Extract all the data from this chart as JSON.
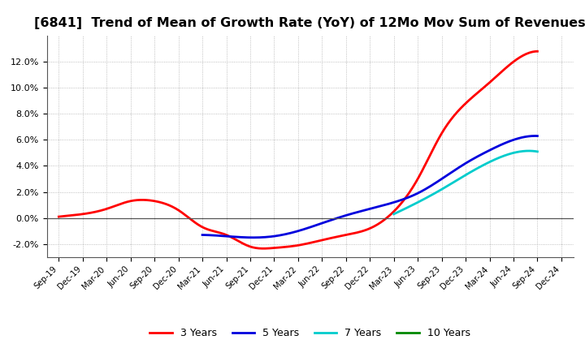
{
  "title": "[6841]  Trend of Mean of Growth Rate (YoY) of 12Mo Mov Sum of Revenues",
  "title_fontsize": 11.5,
  "background_color": "#ffffff",
  "plot_bg_color": "#ffffff",
  "grid_color": "#999999",
  "ylim": [
    -0.03,
    0.14
  ],
  "yticks": [
    -0.02,
    0.0,
    0.02,
    0.04,
    0.06,
    0.08,
    0.1,
    0.12
  ],
  "series": {
    "3 Years": {
      "color": "#ff0000",
      "linewidth": 2.0,
      "data_x": [
        0,
        1,
        2,
        3,
        4,
        5,
        6,
        7,
        8,
        9,
        10,
        11,
        12,
        13,
        14,
        15,
        16,
        17,
        18,
        19,
        20
      ],
      "data_y": [
        0.001,
        0.003,
        0.007,
        0.013,
        0.013,
        0.006,
        -0.007,
        -0.013,
        -0.022,
        -0.023,
        -0.021,
        -0.017,
        -0.013,
        -0.008,
        0.005,
        0.03,
        0.065,
        0.088,
        0.104,
        0.12,
        0.128
      ]
    },
    "5 Years": {
      "color": "#0000dd",
      "linewidth": 2.0,
      "data_x": [
        6,
        7,
        8,
        9,
        10,
        11,
        12,
        13,
        14,
        15,
        16,
        17,
        18,
        19,
        20
      ],
      "data_y": [
        -0.013,
        -0.014,
        -0.015,
        -0.014,
        -0.01,
        -0.004,
        0.002,
        0.007,
        0.012,
        0.019,
        0.03,
        0.042,
        0.052,
        0.06,
        0.063
      ]
    },
    "7 Years": {
      "color": "#00cccc",
      "linewidth": 2.0,
      "data_x": [
        14,
        15,
        16,
        17,
        18,
        19,
        20
      ],
      "data_y": [
        0.003,
        0.012,
        0.022,
        0.033,
        0.043,
        0.05,
        0.051
      ]
    },
    "10 Years": {
      "color": "#008800",
      "linewidth": 2.0,
      "data_x": [],
      "data_y": []
    }
  },
  "x_labels": [
    "Sep-19",
    "Dec-19",
    "Mar-20",
    "Jun-20",
    "Sep-20",
    "Dec-20",
    "Mar-21",
    "Jun-21",
    "Sep-21",
    "Dec-21",
    "Mar-22",
    "Jun-22",
    "Sep-22",
    "Dec-22",
    "Mar-23",
    "Jun-23",
    "Sep-23",
    "Dec-23",
    "Mar-24",
    "Jun-24",
    "Sep-24",
    "Dec-24"
  ],
  "legend_labels": [
    "3 Years",
    "5 Years",
    "7 Years",
    "10 Years"
  ],
  "legend_colors": [
    "#ff0000",
    "#0000dd",
    "#00cccc",
    "#008800"
  ]
}
